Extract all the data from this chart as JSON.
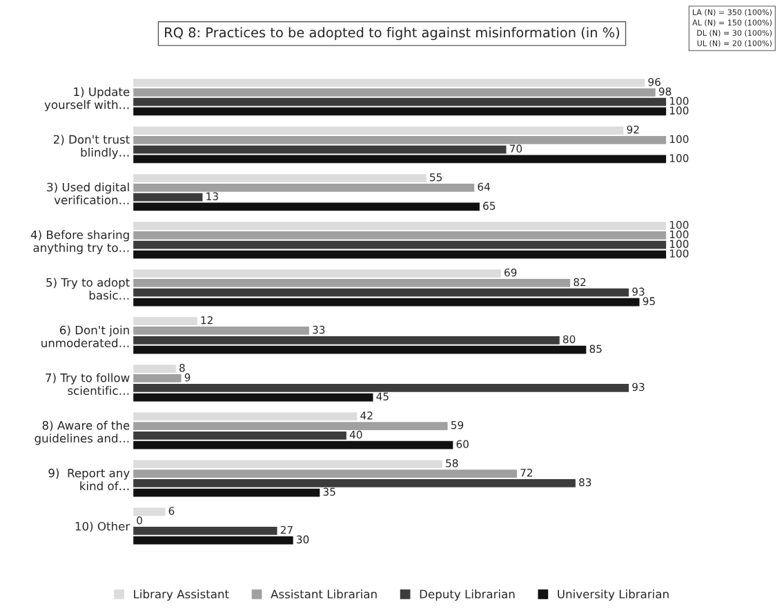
{
  "chart_data": {
    "type": "bar",
    "orientation": "horizontal",
    "title": "RQ 8: Practices to be adopted to fight against misinformation (in %)",
    "categories": [
      "1) Update\nyourself with…",
      "2) Don't trust\nblindly…",
      "3) Used digital\nverification…",
      "4) Before sharing\nanything try to…",
      "5) Try to adopt\nbasic…",
      "6) Don't join\nunmoderated…",
      "7) Try to follow\nscientific…",
      "8) Aware of the\nguidelines and…",
      "9)  Report any\nkind of…",
      "10) Other"
    ],
    "series": [
      {
        "name": "Library Assistant",
        "color": "#dcdcdc",
        "values": [
          96,
          92,
          55,
          100,
          69,
          12,
          8,
          42,
          58,
          6
        ]
      },
      {
        "name": "Assistant Librarian",
        "color": "#a0a0a0",
        "values": [
          98,
          100,
          64,
          100,
          82,
          33,
          9,
          59,
          72,
          0
        ]
      },
      {
        "name": "Deputy Librarian",
        "color": "#3c3c3c",
        "values": [
          100,
          70,
          13,
          100,
          93,
          80,
          93,
          40,
          83,
          27
        ]
      },
      {
        "name": "University Librarian",
        "color": "#111111",
        "values": [
          100,
          100,
          65,
          100,
          95,
          85,
          45,
          60,
          35,
          30
        ]
      }
    ],
    "data_labels": true,
    "legend": "bottom",
    "grid": false,
    "annotations": [
      "LA (N) = 350 (100%)",
      "AL (N) = 150 (100%)",
      "DL (N) = 30 (100%)",
      "UL (N) = 20 (100%)"
    ]
  }
}
